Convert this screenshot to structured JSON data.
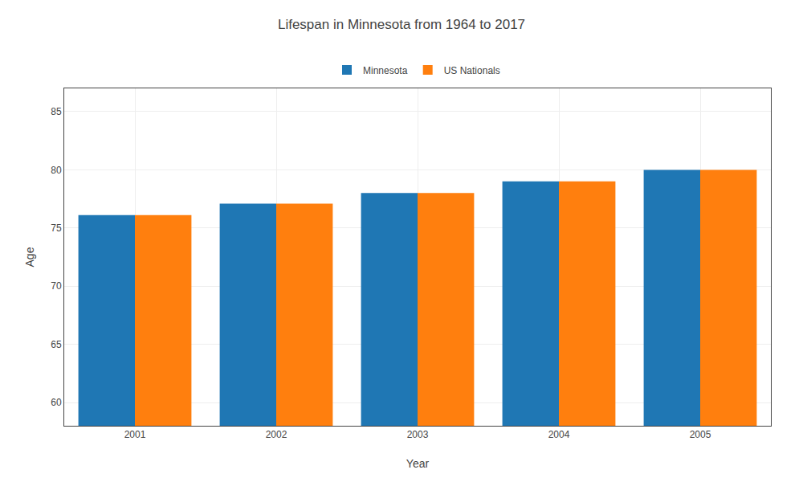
{
  "chart_data": {
    "type": "bar",
    "title": "Lifespan in Minnesota from 1964 to 2017",
    "xlabel": "Year",
    "ylabel": "Age",
    "categories": [
      "2001",
      "2002",
      "2003",
      "2004",
      "2005"
    ],
    "series": [
      {
        "name": "Minnesota",
        "values": [
          76.1,
          77.1,
          78.0,
          79.0,
          80.0
        ]
      },
      {
        "name": "US Nationals",
        "values": [
          76.1,
          77.1,
          78.0,
          79.0,
          80.0
        ]
      }
    ],
    "ylim": [
      58,
      87
    ],
    "yticks": [
      60,
      65,
      70,
      75,
      80,
      85
    ],
    "grid": true,
    "legend": "top"
  }
}
